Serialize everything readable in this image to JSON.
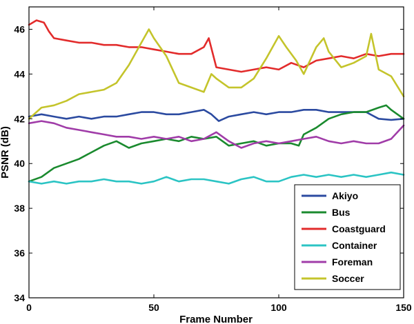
{
  "chart_data": {
    "type": "line",
    "title": "",
    "xlabel": "Frame Number",
    "ylabel": "PSNR (dB)",
    "xlim": [
      0,
      150
    ],
    "ylim": [
      34,
      47
    ],
    "xticks": [
      0,
      50,
      100,
      150
    ],
    "yticks": [
      34,
      36,
      38,
      40,
      42,
      44,
      46
    ],
    "grid": false,
    "legend_position": "bottom-right",
    "series": [
      {
        "name": "Akiyo",
        "color": "#2b4aa0",
        "x": [
          0,
          5,
          10,
          15,
          20,
          25,
          30,
          35,
          40,
          45,
          50,
          55,
          60,
          65,
          70,
          73,
          76,
          80,
          85,
          90,
          95,
          100,
          105,
          110,
          115,
          120,
          125,
          130,
          135,
          140,
          145,
          150
        ],
        "y": [
          42.1,
          42.2,
          42.1,
          42.0,
          42.1,
          42.0,
          42.1,
          42.1,
          42.2,
          42.3,
          42.3,
          42.2,
          42.2,
          42.3,
          42.4,
          42.2,
          41.9,
          42.1,
          42.2,
          42.3,
          42.2,
          42.3,
          42.3,
          42.4,
          42.4,
          42.3,
          42.3,
          42.3,
          42.3,
          42.0,
          41.95,
          42.0
        ]
      },
      {
        "name": "Bus",
        "color": "#1a8a2e",
        "x": [
          0,
          5,
          10,
          15,
          20,
          25,
          30,
          35,
          40,
          45,
          50,
          55,
          60,
          65,
          70,
          75,
          80,
          85,
          90,
          95,
          100,
          105,
          108,
          110,
          115,
          120,
          125,
          130,
          135,
          140,
          143,
          145,
          150
        ],
        "y": [
          39.2,
          39.4,
          39.8,
          40.0,
          40.2,
          40.5,
          40.8,
          41.0,
          40.7,
          40.9,
          41.0,
          41.1,
          41.0,
          41.2,
          41.1,
          41.2,
          40.8,
          40.9,
          41.0,
          40.8,
          40.9,
          40.9,
          40.8,
          41.3,
          41.6,
          42.0,
          42.2,
          42.3,
          42.3,
          42.5,
          42.6,
          42.4,
          42.0
        ]
      },
      {
        "name": "Coastguard",
        "color": "#e22b2b",
        "x": [
          0,
          3,
          6,
          8,
          10,
          15,
          20,
          25,
          30,
          35,
          40,
          45,
          50,
          55,
          60,
          65,
          70,
          72,
          75,
          80,
          85,
          90,
          95,
          100,
          105,
          110,
          115,
          120,
          125,
          130,
          135,
          140,
          145,
          150
        ],
        "y": [
          46.2,
          46.4,
          46.3,
          45.9,
          45.6,
          45.5,
          45.4,
          45.4,
          45.3,
          45.3,
          45.2,
          45.2,
          45.1,
          45.0,
          44.9,
          44.9,
          45.2,
          45.6,
          44.3,
          44.2,
          44.1,
          44.2,
          44.3,
          44.2,
          44.5,
          44.3,
          44.6,
          44.7,
          44.8,
          44.7,
          44.9,
          44.8,
          44.9,
          44.9
        ]
      },
      {
        "name": "Container",
        "color": "#2bc4c4",
        "x": [
          0,
          5,
          10,
          15,
          20,
          25,
          30,
          35,
          40,
          45,
          50,
          55,
          60,
          65,
          70,
          75,
          80,
          85,
          90,
          95,
          100,
          105,
          110,
          115,
          120,
          125,
          130,
          135,
          140,
          145,
          150
        ],
        "y": [
          39.2,
          39.1,
          39.2,
          39.1,
          39.2,
          39.2,
          39.3,
          39.2,
          39.2,
          39.1,
          39.2,
          39.4,
          39.2,
          39.3,
          39.3,
          39.2,
          39.1,
          39.3,
          39.4,
          39.2,
          39.2,
          39.4,
          39.5,
          39.4,
          39.5,
          39.4,
          39.5,
          39.4,
          39.5,
          39.6,
          39.5
        ]
      },
      {
        "name": "Foreman",
        "color": "#a03ca8",
        "x": [
          0,
          5,
          10,
          15,
          20,
          25,
          30,
          35,
          40,
          45,
          50,
          55,
          60,
          65,
          70,
          75,
          80,
          85,
          90,
          95,
          100,
          105,
          110,
          115,
          120,
          125,
          130,
          135,
          140,
          145,
          150
        ],
        "y": [
          41.8,
          41.9,
          41.8,
          41.6,
          41.5,
          41.4,
          41.3,
          41.2,
          41.2,
          41.1,
          41.2,
          41.1,
          41.2,
          41.0,
          41.1,
          41.4,
          41.0,
          40.7,
          40.9,
          41.0,
          40.9,
          41.0,
          41.1,
          41.2,
          41.0,
          40.9,
          41.0,
          40.9,
          40.9,
          41.1,
          41.7
        ]
      },
      {
        "name": "Soccer",
        "color": "#c4c42b",
        "x": [
          0,
          5,
          10,
          15,
          20,
          25,
          30,
          35,
          40,
          45,
          48,
          50,
          55,
          60,
          65,
          70,
          73,
          75,
          80,
          85,
          90,
          95,
          100,
          103,
          107,
          110,
          115,
          118,
          120,
          125,
          130,
          135,
          137,
          140,
          145,
          150
        ],
        "y": [
          42.0,
          42.5,
          42.6,
          42.8,
          43.1,
          43.2,
          43.3,
          43.6,
          44.4,
          45.4,
          46.0,
          45.6,
          44.8,
          43.6,
          43.4,
          43.2,
          44.0,
          43.8,
          43.4,
          43.4,
          43.8,
          44.7,
          45.7,
          45.2,
          44.6,
          44.0,
          45.2,
          45.6,
          45.0,
          44.3,
          44.5,
          44.8,
          45.8,
          44.2,
          43.9,
          43.0
        ]
      }
    ]
  }
}
